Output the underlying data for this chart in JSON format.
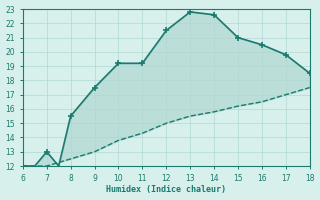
{
  "xlabel": "Humidex (Indice chaleur)",
  "x_upper": [
    6,
    6.5,
    7,
    7.5,
    8,
    9,
    10,
    11,
    12,
    13,
    14,
    15,
    16,
    17,
    18
  ],
  "y_upper": [
    12,
    12,
    13,
    12,
    15.5,
    17.5,
    19.2,
    19.2,
    21.5,
    22.8,
    22.6,
    21,
    20.5,
    19.8,
    18.5
  ],
  "x_lower": [
    6,
    7,
    8,
    9,
    10,
    11,
    12,
    13,
    14,
    15,
    16,
    17,
    18
  ],
  "y_lower": [
    12,
    12,
    12.5,
    13,
    13.8,
    14.3,
    15,
    15.5,
    15.8,
    16.2,
    16.5,
    17,
    17.5
  ],
  "line_color": "#1a7a6e",
  "bg_color": "#d8f0ec",
  "grid_color": "#b0d8d4",
  "xlim": [
    6,
    18
  ],
  "ylim": [
    12,
    23
  ],
  "yticks": [
    12,
    13,
    14,
    15,
    16,
    17,
    18,
    19,
    20,
    21,
    22,
    23
  ],
  "xticks": [
    6,
    7,
    8,
    9,
    10,
    11,
    12,
    13,
    14,
    15,
    16,
    17,
    18
  ],
  "marker_x": [
    6,
    7,
    8,
    9,
    10,
    11,
    12,
    13,
    14,
    15,
    16,
    17,
    18
  ],
  "marker_y": [
    12,
    13,
    15.5,
    17.5,
    19.2,
    19.2,
    21.5,
    22.8,
    22.6,
    21,
    20.5,
    19.8,
    18.5
  ]
}
